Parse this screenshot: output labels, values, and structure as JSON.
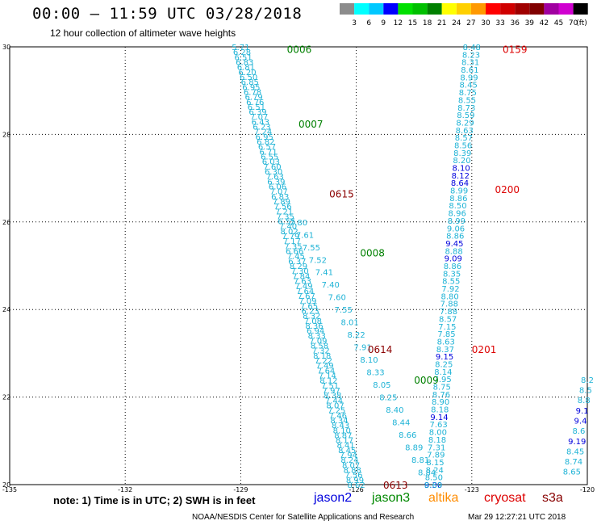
{
  "header": {
    "title": "00:00 – 11:59 UTC 03/28/2018",
    "subtitle": "12 hour collection of altimeter wave heights"
  },
  "scale": {
    "labels": [
      "3",
      "6",
      "9",
      "12",
      "15",
      "18",
      "21",
      "24",
      "27",
      "30",
      "33",
      "36",
      "39",
      "42",
      "45",
      "70"
    ],
    "unit": "(ft)",
    "colors": [
      "#8c8c8c",
      "#00ffff",
      "#00c8ff",
      "#0000ff",
      "#00e000",
      "#00c000",
      "#008000",
      "#ffff00",
      "#ffd000",
      "#ff9900",
      "#ff0000",
      "#d00000",
      "#a00000",
      "#800000",
      "#a000a0",
      "#d000d0",
      "#000000"
    ]
  },
  "axes": {
    "x_labels": [
      "-135",
      "-132",
      "-129",
      "-126",
      "-123",
      "-120"
    ],
    "y_labels": [
      "30",
      "28",
      "26",
      "24",
      "22",
      "20"
    ]
  },
  "tracks": [
    {
      "name": "s3a",
      "color": "#8b0000",
      "labels": [
        {
          "text": "0615",
          "lon": -126.7,
          "lat": 26.65
        },
        {
          "text": "0614",
          "lon": -125.7,
          "lat": 23.1
        },
        {
          "text": "0613",
          "lon": -125.3,
          "lat": 20.0
        }
      ]
    },
    {
      "name": "jason3",
      "color": "#008000",
      "labels": [
        {
          "text": "0006",
          "lon": -127.8,
          "lat": 29.95
        },
        {
          "text": "0007",
          "lon": -127.5,
          "lat": 28.25
        },
        {
          "text": "0008",
          "lon": -125.9,
          "lat": 25.3
        },
        {
          "text": "0009",
          "lon": -124.5,
          "lat": 22.4
        }
      ]
    },
    {
      "name": "cryosat",
      "color": "#dd0000",
      "labels": [
        {
          "text": "0159",
          "lon": -122.2,
          "lat": 29.95
        },
        {
          "text": "0200",
          "lon": -122.4,
          "lat": 26.75
        },
        {
          "text": "0201",
          "lon": -123.0,
          "lat": 23.1
        }
      ]
    }
  ],
  "passes": [
    {
      "start": {
        "lon": -129.0,
        "lat": 30.0
      },
      "end": {
        "lon": -126.0,
        "lat": 20.0
      },
      "values": [
        "5.71",
        "6.28",
        "6.51",
        "6.83",
        "6.81",
        "6.20",
        "6.50",
        "6.85",
        "6.95",
        "6.78",
        "6.79",
        "6.76",
        "6.51",
        "6.39",
        "7.07",
        "6.43",
        "6.23",
        "7.24",
        "6.95",
        "6.82",
        "6.57",
        "6.71",
        "6.55",
        "6.03",
        "7.60",
        "6.30",
        "7.63",
        "6.39",
        "6.06",
        "7.07",
        "6.83",
        "7.89",
        "7.56",
        "7.21",
        "7.35",
        "6.55",
        "7.40",
        "8.02",
        "7.79",
        "7.17",
        "7.35",
        "6.66",
        "7.45",
        "6.37",
        "8.29",
        "7.30",
        "7.84",
        "7.63",
        "7.49",
        "7.64",
        "7.67",
        "7.09",
        "7.65",
        "6.23",
        "8.32",
        "7.08",
        "8.36",
        "6.94",
        "8.33",
        "7.09",
        "8.58",
        "7.32",
        "8.18",
        "7.22",
        "7.49",
        "7.64",
        "7.14",
        "8.12",
        "7.51",
        "7.97",
        "8.38",
        "7.44",
        "8.07",
        "7.25",
        "7.46",
        "8.34",
        "8.43",
        "8.10",
        "8.87",
        "8.17",
        "8.41",
        "8.45",
        "7.94",
        "8.24",
        "8.07",
        "8.88",
        "7.56",
        "8.99",
        "8.62"
      ]
    },
    {
      "start": {
        "lon": -127.5,
        "lat": 26.0
      },
      "end": {
        "lon": -124.0,
        "lat": 20.0
      },
      "values": [
        "7.80",
        "7.61",
        "7.55",
        "7.52",
        "7.41",
        "7.40",
        "7.60",
        "7.55",
        "8.01",
        "8.22",
        "7.91",
        "8.10",
        "8.33",
        "8.05",
        "8.25",
        "8.40",
        "8.44",
        "8.66",
        "8.89",
        "8.81",
        "8.84",
        "9.30"
      ],
      "highlight": {
        "21": "#0000dd"
      }
    },
    {
      "start": {
        "lon": -123.0,
        "lat": 30.0
      },
      "end": {
        "lon": -124.0,
        "lat": 20.0
      },
      "values": [
        "8.48",
        "8.23",
        "8.31",
        "8.61",
        "8.99",
        "8.45",
        "8.75",
        "8.55",
        "8.73",
        "8.59",
        "8.29",
        "8.63",
        "8.57",
        "8.56",
        "8.39",
        "8.20",
        "8.10",
        "8.12",
        "8.64",
        "8.99",
        "8.86",
        "8.50",
        "8.96",
        "8.99",
        "9.06",
        "8.86",
        "9.45",
        "8.88",
        "9.09",
        "8.86",
        "8.35",
        "8.55",
        "7.92",
        "8.80",
        "7.88",
        "7.88",
        "8.57",
        "7.15",
        "7.85",
        "8.63",
        "8.37",
        "9.15",
        "8.25",
        "8.14",
        "7.95",
        "8.75",
        "8.76",
        "8.90",
        "8.18",
        "9.14",
        "7.63",
        "8.00",
        "8.18",
        "7.31",
        "7.89",
        "8.15",
        "8.24",
        "8.50",
        "8.69"
      ],
      "highlight": {
        "16": "#0000dd",
        "17": "#0000dd",
        "18": "#0000dd",
        "26": "#0000dd",
        "28": "#0000dd",
        "41": "#0000dd",
        "49": "#0000dd"
      }
    },
    {
      "start": {
        "lon": -120.0,
        "lat": 22.4
      },
      "end": {
        "lon": -120.4,
        "lat": 20.3
      },
      "values": [
        "8.2",
        "8.5",
        "8.8",
        "9.1",
        "9.4",
        "8.6",
        "9.19",
        "8.45",
        "8.74",
        "8.65"
      ],
      "highlight": {
        "3": "#0000dd",
        "4": "#0000dd",
        "6": "#0000dd"
      }
    }
  ],
  "footer": {
    "note": "note:  1) Time is in UTC;  2) SWH is in feet",
    "satellites": {
      "jason2": "jason2",
      "jason3": "jason3",
      "altika": "altika",
      "cryosat": "cryosat",
      "s3a": "s3a"
    },
    "credit": "NOAA/NESDIS Center for Satellite Applications and Research",
    "timestamp": "Mar 29 12:27:21 UTC 2018"
  }
}
